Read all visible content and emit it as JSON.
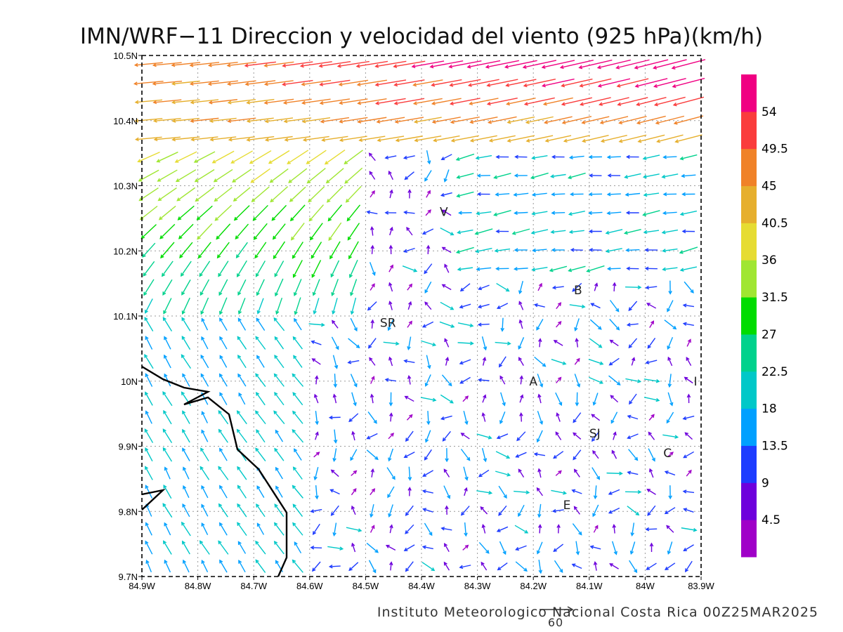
{
  "title": "IMN/WRF−11 Direccion y velocidad del viento (925 hPa)(km/h)",
  "footer": "Instituto Meteorologico Nacional Costa Rica 00Z25MAR2025",
  "reference_vector": {
    "label": "60",
    "value": 60
  },
  "map": {
    "lon_range": [
      -84.9,
      -83.9
    ],
    "lat_range": [
      9.7,
      10.5
    ],
    "x_ticks": [
      {
        "value": -84.9,
        "label": "84.9W"
      },
      {
        "value": -84.8,
        "label": "84.8W"
      },
      {
        "value": -84.7,
        "label": "84.7W"
      },
      {
        "value": -84.6,
        "label": "84.6W"
      },
      {
        "value": -84.5,
        "label": "84.5W"
      },
      {
        "value": -84.4,
        "label": "84.4W"
      },
      {
        "value": -84.3,
        "label": "84.3W"
      },
      {
        "value": -84.2,
        "label": "84.2W"
      },
      {
        "value": -84.1,
        "label": "84.1W"
      },
      {
        "value": -84.0,
        "label": "84W"
      },
      {
        "value": -83.9,
        "label": "83.9W"
      }
    ],
    "y_ticks": [
      {
        "value": 10.5,
        "label": "10.5N"
      },
      {
        "value": 10.4,
        "label": "10.4N"
      },
      {
        "value": 10.3,
        "label": "10.3N"
      },
      {
        "value": 10.2,
        "label": "10.2N"
      },
      {
        "value": 10.1,
        "label": "10.1N"
      },
      {
        "value": 10.0,
        "label": "10N"
      },
      {
        "value": 9.9,
        "label": "9.9N"
      },
      {
        "value": 9.8,
        "label": "9.8N"
      },
      {
        "value": 9.7,
        "label": "9.7N"
      }
    ],
    "places": [
      {
        "label": "V",
        "lon": -84.36,
        "lat": 10.26
      },
      {
        "label": "B",
        "lon": -84.12,
        "lat": 10.14
      },
      {
        "label": "SR",
        "lon": -84.46,
        "lat": 10.09
      },
      {
        "label": "A",
        "lon": -84.2,
        "lat": 10.0
      },
      {
        "label": "I",
        "lon": -83.91,
        "lat": 10.0
      },
      {
        "label": "SJ",
        "lon": -84.09,
        "lat": 9.92
      },
      {
        "label": "C",
        "lon": -83.96,
        "lat": 9.89
      },
      {
        "label": "E",
        "lon": -84.14,
        "lat": 9.81
      }
    ],
    "coastline_color": "#000000"
  },
  "colorbar": {
    "labels": [
      "54",
      "49.5",
      "45",
      "40.5",
      "36",
      "31.5",
      "27",
      "22.5",
      "18",
      "13.5",
      "9",
      "4.5"
    ],
    "thresholds": [
      4.5,
      9,
      13.5,
      18,
      22.5,
      27,
      31.5,
      36,
      40.5,
      45,
      49.5,
      54
    ],
    "colors": [
      "#a000c8",
      "#6e00dc",
      "#1e3cff",
      "#00a0ff",
      "#00c8c8",
      "#00d28c",
      "#00dc00",
      "#a0e632",
      "#e6dc32",
      "#e6af2d",
      "#f08228",
      "#fa3c3c",
      "#f00082"
    ]
  }
}
